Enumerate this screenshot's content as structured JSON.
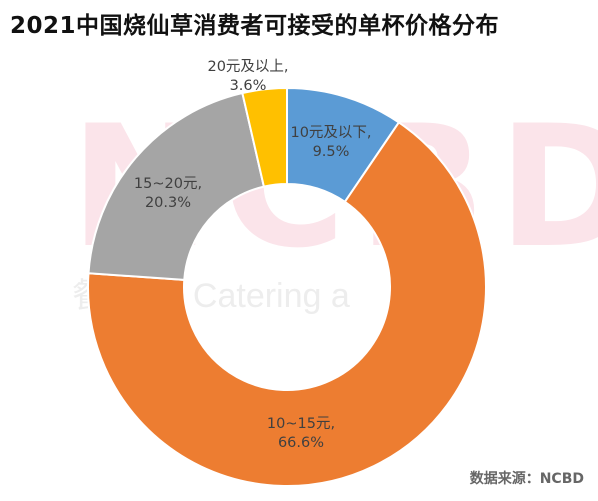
{
  "chart_data": {
    "type": "pie",
    "variant": "donut",
    "title": "2021中国烧仙草消费者可接受的单杯价格分布",
    "categories": [
      "10元及以下",
      "10~15元",
      "15~20元",
      "20元及以上"
    ],
    "values": [
      9.5,
      66.6,
      20.3,
      3.6
    ],
    "value_labels": [
      "9.5%",
      "66.6%",
      "20.3%",
      "3.6%"
    ],
    "label_names": [
      "10元及以下,",
      "10~15元,",
      "15~20元,",
      "20元及以上,"
    ],
    "colors": [
      "#5b9bd5",
      "#ed7d31",
      "#a5a5a5",
      "#ffc000"
    ],
    "legend": "none"
  },
  "watermark": {
    "letters": "NCBD",
    "text": "餐 New Catering  a"
  },
  "source_text": "数据来源：NCBD"
}
